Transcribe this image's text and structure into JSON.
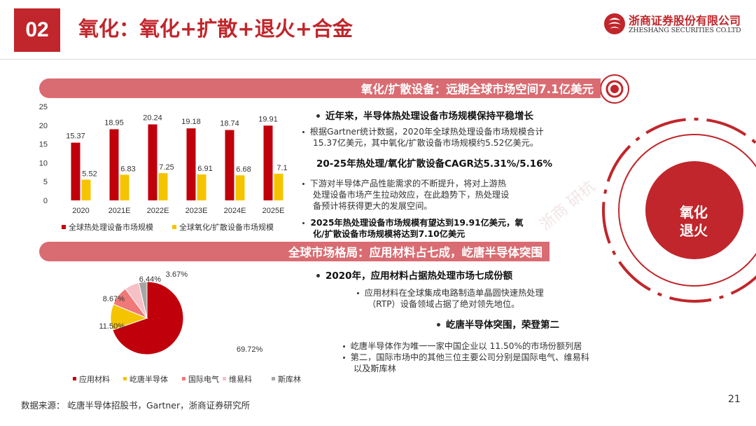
{
  "header": {
    "slide_number": "02",
    "title": "氧化：氧化+扩散+退火+合金",
    "logo_cn": "浙商证券股份有限公司",
    "logo_en": "ZHESHANG SECURITIES CO.LTD"
  },
  "section1": {
    "bar_title": "氧化/扩散设备：远期全球市场空间7.1亿美元",
    "heading1": "近年来，半导体热处理设备市场规模保持平稳增长",
    "text1_line1": "根据Gartner统计数据，2020年全球热处理设备市场规模合计",
    "text1_line2": "15.37亿美元，其中氧化/扩散设备市场规模约5.52亿美元。",
    "heading2": "20-25年热处理/氧化扩散设备CAGR达5.31%/5.16%",
    "text2_line1": "下游对半导体产品性能需求的不断提升，将对上游热",
    "text2_line2": "处理设备市场产生拉动效应，在此趋势下，热处理设",
    "text2_line3": "备预计将获得更大的发展空间。",
    "text3_line1": "2025年热处理设备市场规模有望达到19.91亿美元，氧",
    "text3_line2": "化/扩散设备市场规模将达到7.10亿美元"
  },
  "section2": {
    "bar_title": "全球市场格局：应用材料占七成，屹唐半导体突围",
    "heading1": "2020年，应用材料占据热处理市场七成份额",
    "text1_line1": "应用材料在全球集成电路制造单晶圆快速热处理",
    "text1_line2": "（RTP）设备领域占据了绝对领先地位。",
    "heading2": "屹唐半导体突围，荣登第二",
    "text2": "屹唐半导体作为唯一一家中国企业以 11.50%的市场份额列居",
    "text3_line1": "第二，国际市场中的其他三位主要公司分别是国际电气、维易科",
    "text3_line2": "以及斯库林"
  },
  "side": {
    "circle_text_line1": "氧化",
    "circle_text_line2": "退火"
  },
  "footer": {
    "source": "数据来源： 屹唐半导体招股书，Gartner，浙商证券研究所",
    "page_number": "21"
  },
  "colors": {
    "brand": "#c0262b",
    "bar": "#d96c72",
    "series1": "#c0000b",
    "series2": "#f5c400"
  },
  "chart_data": [
    {
      "type": "bar",
      "categories": [
        "2020",
        "2021E",
        "2022E",
        "2023E",
        "2024E",
        "2025E"
      ],
      "series": [
        {
          "name": "全球热处理设备市场规模",
          "values": [
            15.37,
            18.95,
            20.24,
            19.18,
            18.74,
            19.91
          ],
          "color": "#c0000b"
        },
        {
          "name": "全球氧化/扩散设备市场规模",
          "values": [
            5.52,
            6.83,
            7.25,
            6.91,
            6.68,
            7.1
          ],
          "color": "#f5c400"
        }
      ],
      "value_labels": [
        [
          "15.37",
          "18.95",
          "20.24",
          "19.18",
          "18.74",
          "19.91"
        ],
        [
          "5.52",
          "6.83",
          "7.25",
          "6.91",
          "6.68",
          "7.1"
        ]
      ],
      "ylim": [
        0,
        25
      ],
      "yticks": [
        "0",
        "5",
        "10",
        "15",
        "20",
        "25"
      ],
      "grid": false,
      "legend": "bottom"
    },
    {
      "type": "pie",
      "labels": [
        "应用材料",
        "屹唐半导体",
        "国际电气",
        "维易科",
        "斯库林"
      ],
      "values": [
        69.72,
        11.5,
        8.67,
        6.44,
        3.67
      ],
      "value_labels": [
        "69.72%",
        "11.50%",
        "8.67%",
        "6.44%",
        "3.67%"
      ],
      "colors": [
        "#c0000b",
        "#f5c400",
        "#f07878",
        "#f7c0c6",
        "#a6a6a6"
      ],
      "legend": "bottom"
    }
  ]
}
